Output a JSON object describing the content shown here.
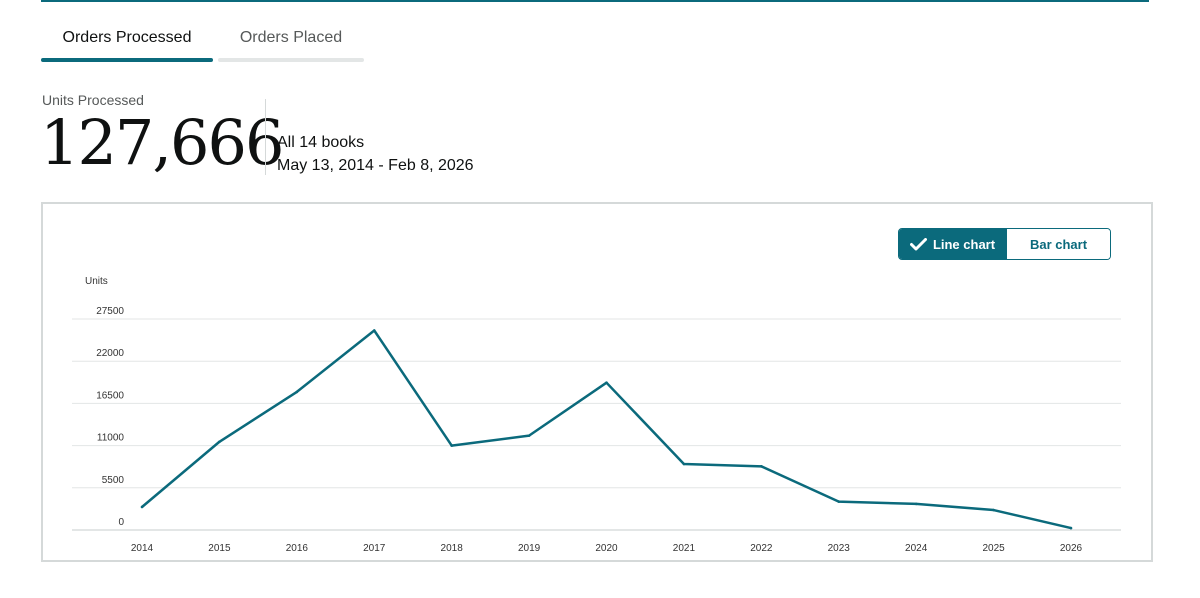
{
  "tabs": [
    {
      "label": "Orders Processed",
      "active": true
    },
    {
      "label": "Orders Placed",
      "active": false
    }
  ],
  "summary": {
    "label": "Units Processed",
    "total": "127,666",
    "scope": "All 14 books",
    "date_range": "May 13, 2014 - Feb 8, 2026"
  },
  "chart_toggle": {
    "line_label": "Line chart",
    "bar_label": "Bar chart",
    "selected": "line"
  },
  "colors": {
    "accent": "#0b6a7c",
    "grid": "#e3e6e6"
  },
  "chart_data": {
    "type": "line",
    "title": "",
    "xlabel": "",
    "ylabel": "Units",
    "ylim": [
      0,
      27500
    ],
    "yticks": [
      0,
      5500,
      11000,
      16500,
      22000,
      27500
    ],
    "categories": [
      "2014",
      "2015",
      "2016",
      "2017",
      "2018",
      "2019",
      "2020",
      "2021",
      "2022",
      "2023",
      "2024",
      "2025",
      "2026"
    ],
    "series": [
      {
        "name": "Units Processed",
        "values": [
          3000,
          11500,
          18000,
          26000,
          11000,
          12300,
          19200,
          8600,
          8300,
          3700,
          3400,
          2600,
          250
        ]
      }
    ]
  }
}
